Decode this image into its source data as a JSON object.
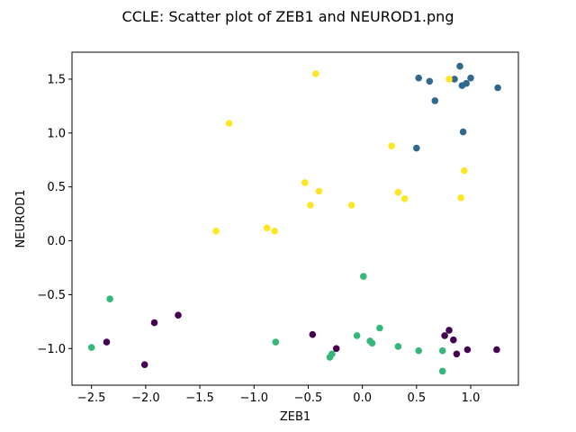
{
  "chart_data": {
    "type": "scatter",
    "title": "CCLE: Scatter plot of ZEB1 and NEUROD1.png",
    "xlabel": "ZEB1",
    "ylabel": "NEUROD1",
    "xlim": [
      -2.68,
      1.44
    ],
    "ylim": [
      -1.34,
      1.75
    ],
    "xticks": [
      -2.5,
      -2.0,
      -1.5,
      -1.0,
      -0.5,
      0.0,
      0.5,
      1.0
    ],
    "xtick_labels": [
      "−2.5",
      "−2.0",
      "−1.5",
      "−1.0",
      "−0.5",
      "0.0",
      "0.5",
      "1.0"
    ],
    "yticks": [
      -1.0,
      -0.5,
      0.0,
      0.5,
      1.0,
      1.5
    ],
    "ytick_labels": [
      "−1.0",
      "−0.5",
      "0.0",
      "0.5",
      "1.0",
      "1.5"
    ],
    "grid": false,
    "legend": false,
    "series": [
      {
        "color": "#31688e",
        "points": [
          [
            0.5,
            0.86
          ],
          [
            0.52,
            1.51
          ],
          [
            0.62,
            1.48
          ],
          [
            0.67,
            1.3
          ],
          [
            0.85,
            1.5
          ],
          [
            0.9,
            1.62
          ],
          [
            0.92,
            1.44
          ],
          [
            0.93,
            1.01
          ],
          [
            0.96,
            1.46
          ],
          [
            1.0,
            1.51
          ],
          [
            1.25,
            1.42
          ]
        ]
      },
      {
        "color": "#fde725",
        "points": [
          [
            -0.43,
            1.55
          ],
          [
            -1.23,
            1.09
          ],
          [
            -0.53,
            0.54
          ],
          [
            -0.4,
            0.46
          ],
          [
            -0.48,
            0.33
          ],
          [
            -0.1,
            0.33
          ],
          [
            -1.35,
            0.09
          ],
          [
            -0.88,
            0.12
          ],
          [
            -0.81,
            0.09
          ],
          [
            0.27,
            0.88
          ],
          [
            0.33,
            0.45
          ],
          [
            0.39,
            0.39
          ],
          [
            0.8,
            1.5
          ],
          [
            0.91,
            0.4
          ],
          [
            0.94,
            0.65
          ]
        ]
      },
      {
        "color": "#35b779",
        "points": [
          [
            -2.33,
            -0.54
          ],
          [
            -2.5,
            -0.99
          ],
          [
            -0.8,
            -0.94
          ],
          [
            -0.3,
            -1.08
          ],
          [
            -0.28,
            -1.05
          ],
          [
            0.01,
            -0.33
          ],
          [
            -0.05,
            -0.88
          ],
          [
            0.07,
            -0.93
          ],
          [
            0.09,
            -0.95
          ],
          [
            0.16,
            -0.81
          ],
          [
            0.33,
            -0.98
          ],
          [
            0.52,
            -1.02
          ],
          [
            0.74,
            -1.02
          ],
          [
            0.74,
            -1.21
          ]
        ]
      },
      {
        "color": "#440154",
        "points": [
          [
            -2.36,
            -0.94
          ],
          [
            -2.01,
            -1.15
          ],
          [
            -1.92,
            -0.76
          ],
          [
            -1.7,
            -0.69
          ],
          [
            -0.46,
            -0.87
          ],
          [
            -0.24,
            -1.0
          ],
          [
            0.76,
            -0.88
          ],
          [
            0.8,
            -0.83
          ],
          [
            0.84,
            -0.92
          ],
          [
            0.87,
            -1.05
          ],
          [
            0.97,
            -1.01
          ],
          [
            1.24,
            -1.01
          ]
        ]
      }
    ]
  }
}
